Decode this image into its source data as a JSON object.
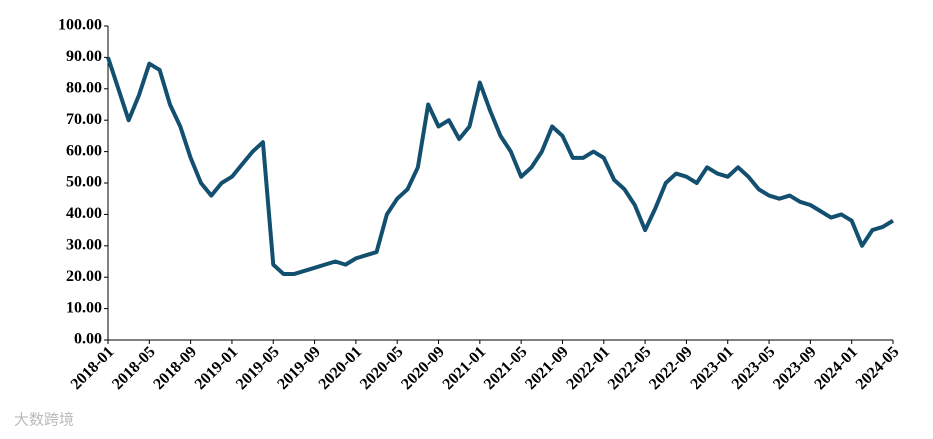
{
  "chart_data": {
    "type": "line",
    "x": [
      "2018-01",
      "2018-02",
      "2018-03",
      "2018-04",
      "2018-05",
      "2018-06",
      "2018-07",
      "2018-08",
      "2018-09",
      "2018-10",
      "2018-11",
      "2018-12",
      "2019-01",
      "2019-02",
      "2019-03",
      "2019-04",
      "2019-05",
      "2019-06",
      "2019-07",
      "2019-08",
      "2019-09",
      "2019-10",
      "2019-11",
      "2019-12",
      "2020-01",
      "2020-02",
      "2020-03",
      "2020-04",
      "2020-05",
      "2020-06",
      "2020-07",
      "2020-08",
      "2020-09",
      "2020-10",
      "2020-11",
      "2020-12",
      "2021-01",
      "2021-02",
      "2021-03",
      "2021-04",
      "2021-05",
      "2021-06",
      "2021-07",
      "2021-08",
      "2021-09",
      "2021-10",
      "2021-11",
      "2021-12",
      "2022-01",
      "2022-02",
      "2022-03",
      "2022-04",
      "2022-05",
      "2022-06",
      "2022-07",
      "2022-08",
      "2022-09",
      "2022-10",
      "2022-11",
      "2022-12",
      "2023-01",
      "2023-02",
      "2023-03",
      "2023-04",
      "2023-05",
      "2023-06",
      "2023-07",
      "2023-08",
      "2023-09",
      "2023-10",
      "2023-11",
      "2023-12",
      "2024-01",
      "2024-02",
      "2024-03",
      "2024-04",
      "2024-05"
    ],
    "series": [
      {
        "color": "#13506f",
        "values": [
          90,
          80,
          70,
          78,
          88,
          86,
          75,
          68,
          58,
          50,
          46,
          50,
          52,
          56,
          60,
          63,
          24,
          21,
          21,
          22,
          23,
          24,
          25,
          24,
          26,
          27,
          28,
          40,
          45,
          48,
          55,
          75,
          68,
          70,
          64,
          68,
          82,
          73,
          65,
          60,
          52,
          55,
          60,
          68,
          65,
          58,
          58,
          60,
          58,
          51,
          48,
          43,
          35,
          42,
          50,
          53,
          52,
          50,
          55,
          53,
          52,
          55,
          52,
          48,
          46,
          45,
          46,
          44,
          43,
          41,
          39,
          40,
          38,
          30,
          35,
          36,
          38
        ]
      }
    ],
    "xticks": [
      "2018-01",
      "2018-05",
      "2018-09",
      "2019-01",
      "2019-05",
      "2019-09",
      "2020-01",
      "2020-05",
      "2020-09",
      "2021-01",
      "2021-05",
      "2021-09",
      "2022-01",
      "2022-05",
      "2022-09",
      "2023-01",
      "2023-05",
      "2023-09",
      "2024-01",
      "2024-05"
    ],
    "ylim": [
      0,
      100
    ],
    "yticks": [
      {
        "value": 0,
        "label": "0.00"
      },
      {
        "value": 10,
        "label": "10.00"
      },
      {
        "value": 20,
        "label": "20.00"
      },
      {
        "value": 30,
        "label": "30.00"
      },
      {
        "value": 40,
        "label": "40.00"
      },
      {
        "value": 50,
        "label": "50.00"
      },
      {
        "value": 60,
        "label": "60.00"
      },
      {
        "value": 70,
        "label": "70.00"
      },
      {
        "value": 80,
        "label": "80.00"
      },
      {
        "value": 90,
        "label": "90.00"
      },
      {
        "value": 100,
        "label": "100.00"
      }
    ],
    "grid": false
  },
  "watermark": "大数跨境"
}
